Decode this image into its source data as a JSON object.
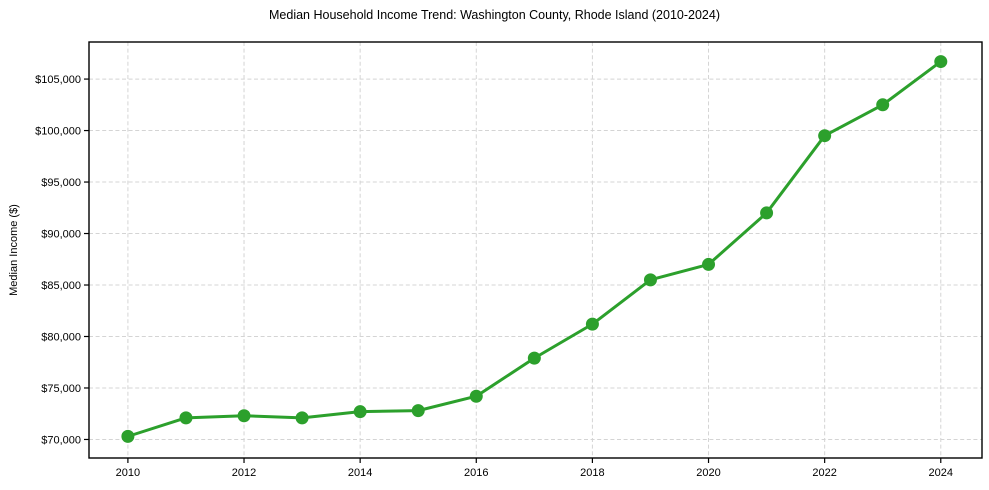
{
  "chart_data": {
    "type": "line",
    "title": "Median Household Income Trend: Washington County, Rhode Island (2010-2024)",
    "xlabel": "",
    "ylabel": "Median Income ($)",
    "x": [
      2010,
      2011,
      2012,
      2013,
      2014,
      2015,
      2016,
      2017,
      2018,
      2019,
      2020,
      2021,
      2022,
      2023,
      2024
    ],
    "series": [
      {
        "name": "Median Household Income",
        "values": [
          70300,
          72100,
          72300,
          72100,
          72700,
          72800,
          74200,
          77900,
          81200,
          85500,
          87000,
          92000,
          99500,
          102500,
          106700
        ],
        "color": "#2ca02c",
        "marker": "circle",
        "line_width": 3,
        "marker_size": 6.5
      }
    ],
    "xlim": [
      2009.33,
      2024.71
    ],
    "ylim": [
      68200,
      108600
    ],
    "x_ticks": [
      2010,
      2012,
      2014,
      2016,
      2018,
      2020,
      2022,
      2024
    ],
    "x_tick_labels": [
      "2010",
      "2012",
      "2014",
      "2016",
      "2018",
      "2020",
      "2022",
      "2024"
    ],
    "y_ticks": [
      70000,
      75000,
      80000,
      85000,
      90000,
      95000,
      100000,
      105000
    ],
    "y_tick_labels": [
      "$70,000",
      "$75,000",
      "$80,000",
      "$85,000",
      "$90,000",
      "$95,000",
      "$100,000",
      "$105,000"
    ],
    "grid": true,
    "grid_style": "dashed",
    "legend": false
  },
  "colors": {
    "line": "#2ca02c",
    "grid": "#d4d4d4",
    "axis_border": "#000000",
    "text": "#000000",
    "background": "#ffffff"
  }
}
